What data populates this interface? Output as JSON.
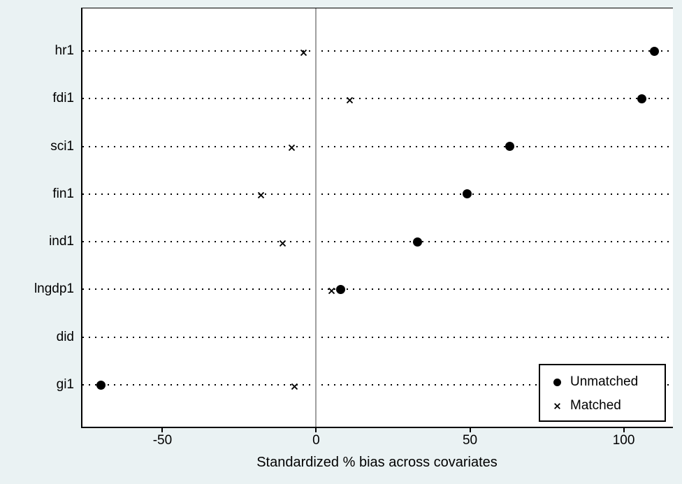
{
  "chart_data": {
    "type": "scatter",
    "variant": "horizontal-dot-plot",
    "title": "",
    "xlabel": "Standardized % bias across covariates",
    "ylabel": "",
    "categories": [
      "hr1",
      "fdi1",
      "sci1",
      "fin1",
      "ind1",
      "lngdp1",
      "did",
      "gi1"
    ],
    "series": [
      {
        "name": "Unmatched",
        "marker": "circle",
        "values": [
          110,
          106,
          63,
          49,
          33,
          8,
          null,
          -70
        ]
      },
      {
        "name": "Matched",
        "marker": "x",
        "values": [
          -4,
          11,
          -8,
          -18,
          -11,
          5,
          null,
          -7
        ]
      }
    ],
    "x_ticks": [
      -50,
      0,
      50,
      100
    ],
    "xlim": [
      -76,
      116
    ],
    "zero_line_at": 0,
    "grid": "dotted horizontal line per category",
    "legend_position": "inside bottom-right"
  },
  "legend": {
    "items": [
      {
        "label": "Unmatched",
        "marker": "circle"
      },
      {
        "label": "Matched",
        "marker": "x"
      }
    ]
  },
  "colors": {
    "background": "#eaf2f3",
    "plot_background": "#ffffff",
    "marker": "#000000",
    "gridline": "#000000",
    "zero_line": "#a0a0a0",
    "axis_border": "#000000",
    "legend_background": "#ffffff"
  }
}
